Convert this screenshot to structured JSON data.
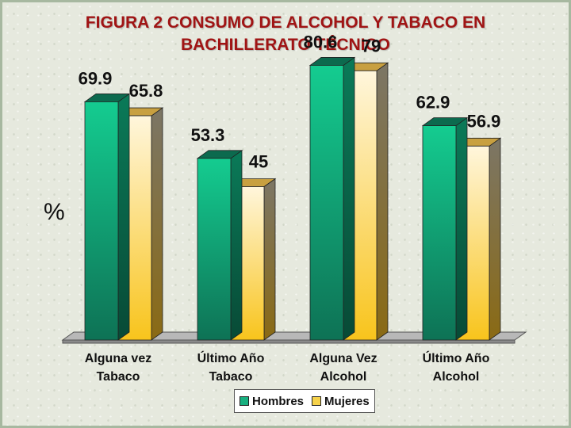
{
  "title_line1": "FIGURA 2 CONSUMO DE ALCOHOL Y TABACO EN",
  "title_line2": "BACHILLERATO TÉCNICO",
  "colors": {
    "title": "#a01414",
    "hombres": "#18b080",
    "mujeres": "#f6d24a"
  },
  "chart_data": {
    "type": "bar",
    "title": "FIGURA 2 CONSUMO DE ALCOHOL Y TABACO EN BACHILLERATO TÉCNICO",
    "ylabel": "%",
    "xlabel": "",
    "categories": [
      [
        "Alguna vez",
        "Tabaco"
      ],
      [
        "Último Año",
        "Tabaco"
      ],
      [
        "Alguna Vez",
        "Alcohol"
      ],
      [
        "Último Año",
        "Alcohol"
      ]
    ],
    "series": [
      {
        "name": "Hombres",
        "values": [
          69.9,
          53.3,
          80.6,
          62.9
        ],
        "labels": [
          "69.9",
          "53.3",
          "80.6",
          "62.9"
        ]
      },
      {
        "name": "Mujeres",
        "values": [
          65.8,
          45,
          79,
          56.9
        ],
        "labels": [
          "65.8",
          "45",
          "79",
          "56.9"
        ]
      }
    ],
    "ylim": [
      0,
      100
    ],
    "grid": false,
    "legend_position": "bottom-center",
    "style": "3d"
  }
}
